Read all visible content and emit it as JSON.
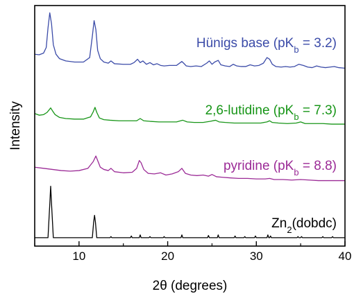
{
  "chart_data": {
    "type": "line",
    "xlabel": "2θ (degrees)",
    "ylabel": "Intensity",
    "xlim": [
      5,
      40
    ],
    "x_ticks": [
      "10",
      "20",
      "30",
      "40"
    ],
    "y_ticks": [],
    "grid": false,
    "series": [
      {
        "label_main": "Hünigs base (pK",
        "label_sub": "b",
        "label_tail": " = 3.2)",
        "color": "#3b4ba8",
        "offset": 3.0,
        "x": [
          5.0,
          5.5,
          6.0,
          6.3,
          6.5,
          6.7,
          6.9,
          7.1,
          7.4,
          7.8,
          8.5,
          9.5,
          10.5,
          11.2,
          11.5,
          11.7,
          11.9,
          12.1,
          12.4,
          12.8,
          13.3,
          13.6,
          14.0,
          15.0,
          15.8,
          16.2,
          16.6,
          16.9,
          17.2,
          17.6,
          18.0,
          18.4,
          18.8,
          19.2,
          19.6,
          20.2,
          21.0,
          21.6,
          21.8,
          22.1,
          22.6,
          23.2,
          23.8,
          24.4,
          24.7,
          25.0,
          25.3,
          25.7,
          26.0,
          26.5,
          27.0,
          27.4,
          27.8,
          28.3,
          28.8,
          29.3,
          29.8,
          30.3,
          30.8,
          31.2,
          31.5,
          31.8,
          32.2,
          32.8,
          33.3,
          33.8,
          34.3,
          34.8,
          35.3,
          35.8,
          36.3,
          36.8,
          37.3,
          37.8,
          38.3,
          38.8,
          39.3,
          40.0
        ],
        "y": [
          0.28,
          0.27,
          0.3,
          0.4,
          0.75,
          1.02,
          0.82,
          0.45,
          0.28,
          0.2,
          0.16,
          0.14,
          0.14,
          0.22,
          0.6,
          0.88,
          0.72,
          0.35,
          0.2,
          0.14,
          0.12,
          0.16,
          0.11,
          0.1,
          0.1,
          0.13,
          0.19,
          0.13,
          0.16,
          0.1,
          0.13,
          0.09,
          0.11,
          0.08,
          0.07,
          0.08,
          0.08,
          0.15,
          0.12,
          0.07,
          0.06,
          0.07,
          0.06,
          0.12,
          0.16,
          0.1,
          0.14,
          0.17,
          0.09,
          0.07,
          0.06,
          0.1,
          0.07,
          0.06,
          0.06,
          0.09,
          0.07,
          0.08,
          0.12,
          0.22,
          0.19,
          0.1,
          0.06,
          0.05,
          0.06,
          0.05,
          0.06,
          0.1,
          0.08,
          0.05,
          0.04,
          0.07,
          0.05,
          0.04,
          0.05,
          0.06,
          0.04,
          0.03
        ]
      },
      {
        "label_main": "2,6-lutidine (pK",
        "label_sub": "b",
        "label_tail": " = 7.3)",
        "color": "#179517",
        "offset": 2.0,
        "x": [
          5.0,
          5.5,
          6.0,
          6.4,
          6.8,
          7.0,
          7.3,
          7.8,
          8.5,
          9.5,
          10.5,
          11.3,
          11.6,
          11.8,
          12.0,
          12.3,
          12.8,
          13.5,
          14.5,
          15.5,
          16.5,
          16.9,
          17.3,
          18.0,
          19.0,
          20.0,
          21.0,
          21.7,
          22.2,
          23.0,
          24.0,
          24.8,
          25.4,
          25.8,
          26.5,
          27.5,
          28.5,
          29.5,
          30.5,
          31.2,
          31.5,
          31.8,
          32.5,
          33.5,
          34.5,
          35.0,
          35.5,
          36.5,
          37.5,
          38.5,
          39.5,
          40.0
        ],
        "y": [
          0.22,
          0.19,
          0.2,
          0.24,
          0.32,
          0.27,
          0.2,
          0.15,
          0.13,
          0.12,
          0.12,
          0.16,
          0.25,
          0.33,
          0.24,
          0.14,
          0.11,
          0.1,
          0.09,
          0.09,
          0.09,
          0.13,
          0.09,
          0.08,
          0.07,
          0.07,
          0.07,
          0.1,
          0.07,
          0.06,
          0.06,
          0.08,
          0.1,
          0.07,
          0.06,
          0.05,
          0.05,
          0.05,
          0.05,
          0.07,
          0.09,
          0.06,
          0.05,
          0.04,
          0.05,
          0.07,
          0.04,
          0.04,
          0.04,
          0.03,
          0.03,
          0.03
        ]
      },
      {
        "label_main": "pyridine (pK",
        "label_sub": "b",
        "label_tail": " = 8.8)",
        "color": "#9b2a96",
        "offset": 1.0,
        "x": [
          5.0,
          6.0,
          7.0,
          8.0,
          9.0,
          10.0,
          11.0,
          11.6,
          11.9,
          12.1,
          12.4,
          12.8,
          13.3,
          13.6,
          14.0,
          15.0,
          16.0,
          16.5,
          16.8,
          17.0,
          17.3,
          17.8,
          18.5,
          19.2,
          19.8,
          20.5,
          21.2,
          21.6,
          22.0,
          22.6,
          23.3,
          24.0,
          24.6,
          25.0,
          25.5,
          26.2,
          27.0,
          28.0,
          29.0,
          30.0,
          31.0,
          31.5,
          32.0,
          33.0,
          34.0,
          35.0,
          36.0,
          37.0,
          38.0,
          39.0,
          40.0
        ],
        "y": [
          0.26,
          0.24,
          0.22,
          0.2,
          0.19,
          0.2,
          0.24,
          0.36,
          0.46,
          0.38,
          0.26,
          0.22,
          0.2,
          0.24,
          0.18,
          0.16,
          0.17,
          0.24,
          0.38,
          0.34,
          0.22,
          0.15,
          0.14,
          0.16,
          0.12,
          0.14,
          0.18,
          0.24,
          0.15,
          0.12,
          0.11,
          0.12,
          0.1,
          0.13,
          0.09,
          0.08,
          0.07,
          0.06,
          0.06,
          0.05,
          0.05,
          0.06,
          0.04,
          0.04,
          0.03,
          0.04,
          0.03,
          0.02,
          0.02,
          0.02,
          0.02
        ]
      },
      {
        "label_main": "Zn",
        "label_sub": "2",
        "label_tail": "(dobdc)",
        "color": "#000000",
        "offset": 0.0,
        "x": [
          5.0,
          6.5,
          6.7,
          6.8,
          6.9,
          7.1,
          11.5,
          11.65,
          11.75,
          11.85,
          12.0,
          13.5,
          13.6,
          13.7,
          15.8,
          15.9,
          16.0,
          16.8,
          16.9,
          17.0,
          17.9,
          18.0,
          18.1,
          19.5,
          19.6,
          19.7,
          21.5,
          21.6,
          21.7,
          24.5,
          24.6,
          24.7,
          25.6,
          25.7,
          25.8,
          27.5,
          27.6,
          27.7,
          28.6,
          28.7,
          28.8,
          29.8,
          29.9,
          30.0,
          31.2,
          31.3,
          31.4,
          31.5,
          31.6,
          31.7,
          34.6,
          34.7,
          34.8,
          35.0,
          35.1,
          35.2,
          37.4,
          37.5,
          37.6,
          38.5,
          38.6,
          38.7,
          40.0
        ],
        "y": [
          0.0,
          0.0,
          0.6,
          0.92,
          0.6,
          0.0,
          0.0,
          0.28,
          0.4,
          0.28,
          0.0,
          0.0,
          0.02,
          0.0,
          0.0,
          0.03,
          0.0,
          0.0,
          0.05,
          0.0,
          0.0,
          0.02,
          0.0,
          0.0,
          0.02,
          0.0,
          0.0,
          0.05,
          0.0,
          0.0,
          0.04,
          0.0,
          0.0,
          0.05,
          0.0,
          0.0,
          0.03,
          0.0,
          0.0,
          0.02,
          0.0,
          0.0,
          0.03,
          0.0,
          0.0,
          0.05,
          0.0,
          0.0,
          0.03,
          0.0,
          0.0,
          0.02,
          0.0,
          0.0,
          0.02,
          0.0,
          0.0,
          0.02,
          0.0,
          0.0,
          0.02,
          0.0,
          0.0
        ]
      }
    ]
  }
}
